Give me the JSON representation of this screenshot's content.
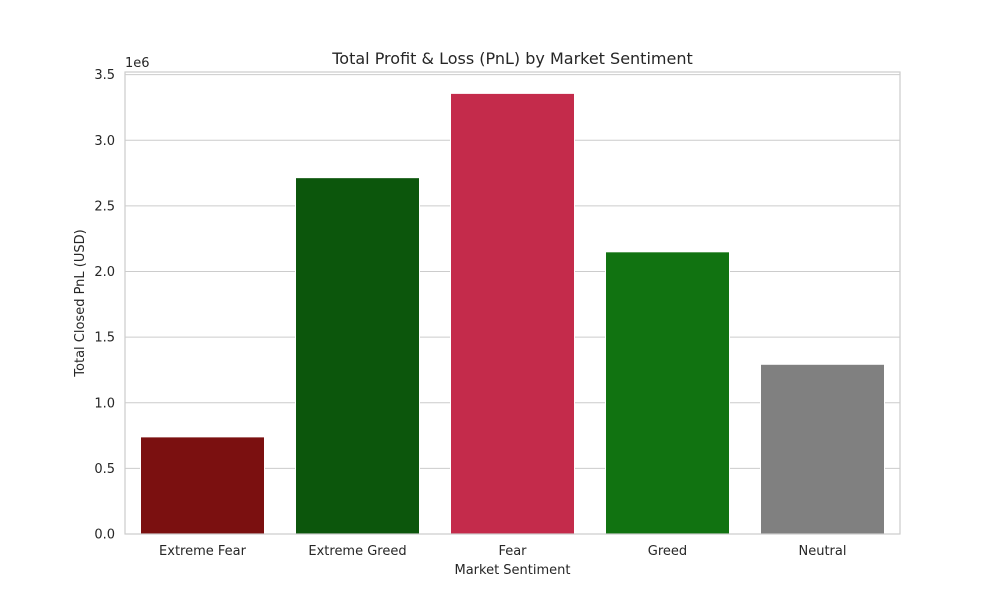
{
  "chart_data": {
    "type": "bar",
    "title": "Total Profit & Loss (PnL) by Market Sentiment",
    "xlabel": "Market Sentiment",
    "ylabel": "Total Closed PnL (USD)",
    "y_offset_label": "1e6",
    "categories": [
      "Extreme Fear",
      "Extreme Greed",
      "Fear",
      "Greed",
      "Neutral"
    ],
    "values": [
      740000,
      2715000,
      3357000,
      2150000,
      1293000
    ],
    "colors": [
      "#7b1010",
      "#0c560c",
      "#c42b4b",
      "#117311",
      "#808080"
    ],
    "ylim": [
      0,
      3520000
    ],
    "yticks": [
      0,
      500000,
      1000000,
      1500000,
      2000000,
      2500000,
      3000000,
      3500000
    ],
    "ytick_labels": [
      "0.0",
      "0.5",
      "1.0",
      "1.5",
      "2.0",
      "2.5",
      "3.0",
      "3.5"
    ],
    "grid": true,
    "legend": "none"
  }
}
